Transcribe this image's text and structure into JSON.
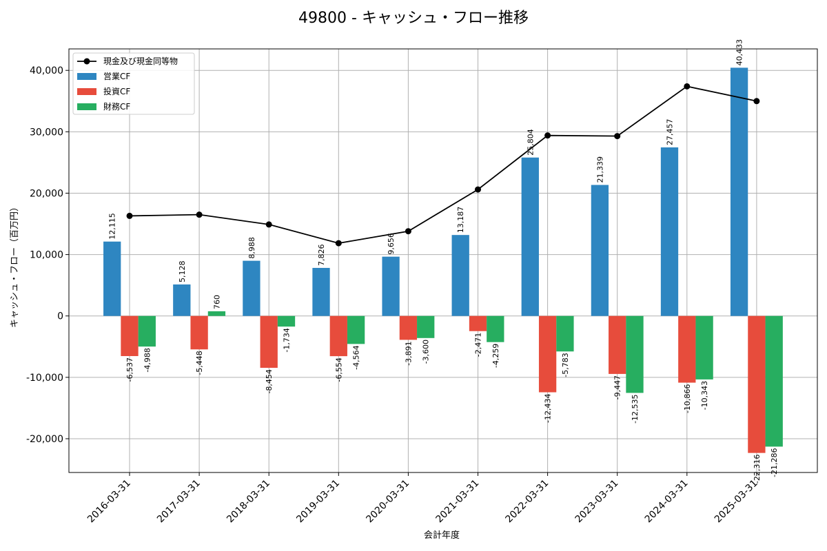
{
  "chart_data": {
    "type": "bar",
    "title": "49800 - キャッシュ・フロー推移",
    "xlabel": "会計年度",
    "ylabel": "キャッシュ・フロー（百万円）",
    "categories": [
      "2016-03-31",
      "2017-03-31",
      "2018-03-31",
      "2019-03-31",
      "2020-03-31",
      "2021-03-31",
      "2022-03-31",
      "2023-03-31",
      "2024-03-31",
      "2025-03-31"
    ],
    "series": [
      {
        "name": "営業CF",
        "kind": "bar",
        "color": "#2e86c1",
        "values": [
          12115,
          5128,
          8988,
          7826,
          9656,
          13187,
          25804,
          21339,
          27457,
          40433
        ]
      },
      {
        "name": "投資CF",
        "kind": "bar",
        "color": "#e74c3c",
        "values": [
          -6537,
          -5448,
          -8454,
          -6554,
          -3891,
          -2471,
          -12434,
          -9447,
          -10866,
          -22316
        ]
      },
      {
        "name": "財務CF",
        "kind": "bar",
        "color": "#27ae60",
        "values": [
          -4988,
          760,
          -1734,
          -4564,
          -3600,
          -4259,
          -5783,
          -12535,
          -10343,
          -21286
        ]
      },
      {
        "name": "現金及び現金同等物",
        "kind": "line",
        "color": "#000000",
        "values": [
          16300,
          16500,
          14900,
          11850,
          13800,
          20600,
          29400,
          29300,
          37400,
          35000
        ]
      }
    ],
    "ylim": [
      -25500,
      43500
    ],
    "yticks": [
      -20000,
      -10000,
      0,
      10000,
      20000,
      30000,
      40000
    ],
    "ytick_labels": [
      "-20,000",
      "-10,000",
      "0",
      "10,000",
      "20,000",
      "30,000",
      "40,000"
    ],
    "grid": true,
    "legend": "top-left",
    "data_labels": [
      [
        "12,115",
        "5,128",
        "8,988",
        "7,826",
        "9,656",
        "13,187",
        "25,804",
        "21,339",
        "27,457",
        "40,433"
      ],
      [
        "-6,537",
        "-5,448",
        "-8,454",
        "-6,554",
        "-3,891",
        "-2,471",
        "-12,434",
        "-9,447",
        "-10,866",
        "-22,316"
      ],
      [
        "-4,988",
        "760",
        "-1,734",
        "-4,564",
        "-3,600",
        "-4,259",
        "-5,783",
        "-12,535",
        "-10,343",
        "-21,286"
      ]
    ]
  }
}
